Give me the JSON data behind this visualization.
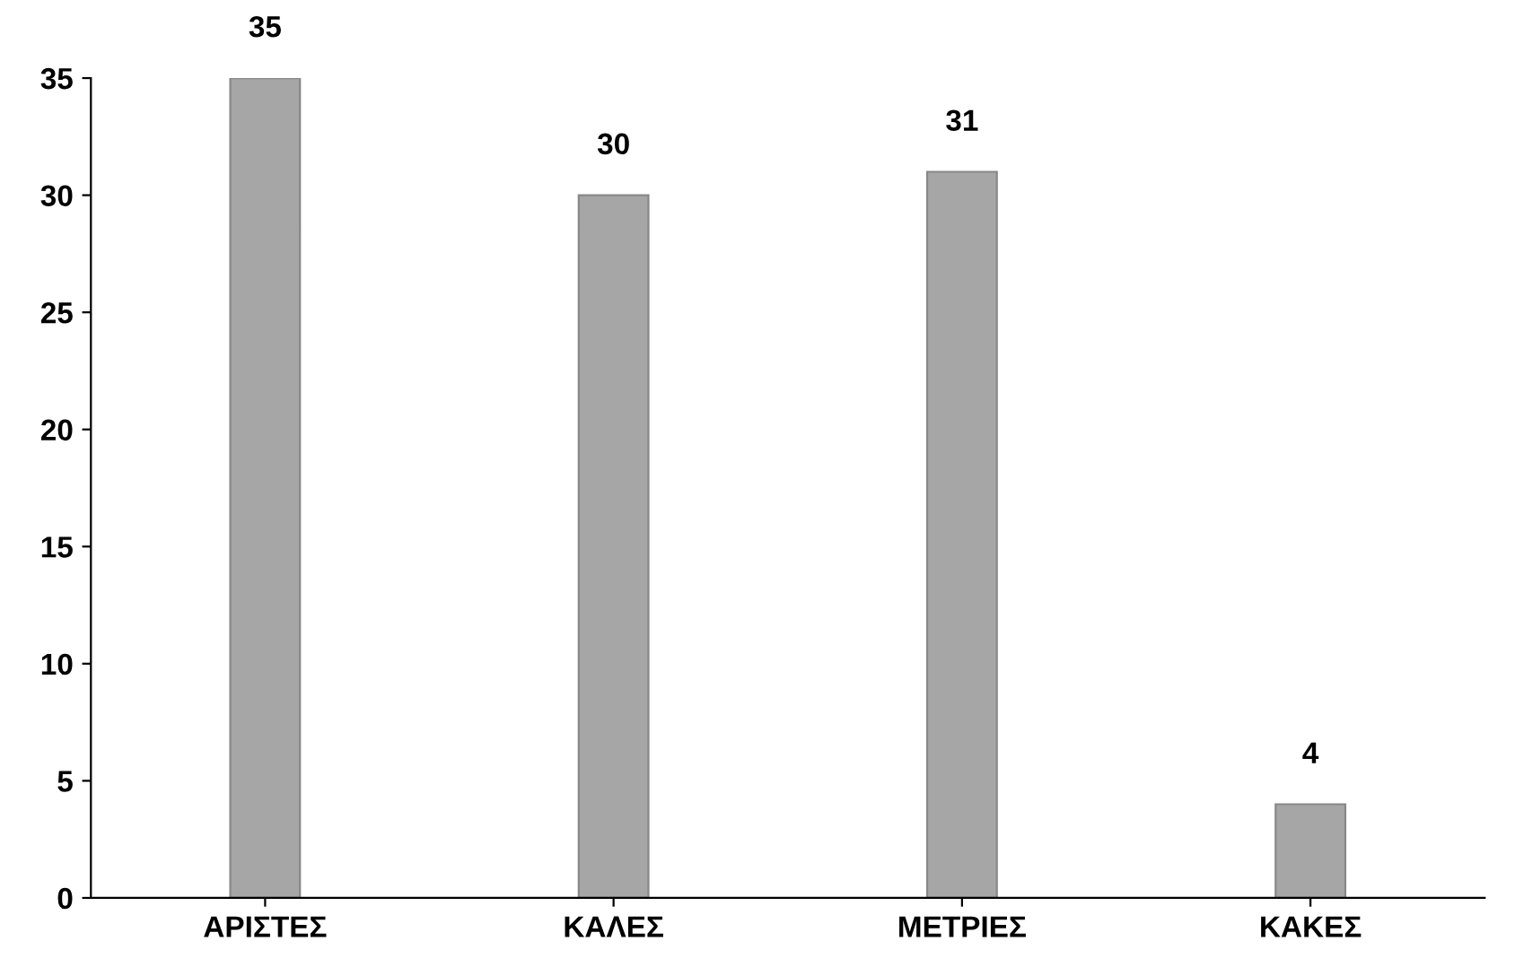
{
  "chart_data": {
    "type": "bar",
    "categories": [
      "ΑΡΙΣΤΕΣ",
      "ΚΑΛΕΣ",
      "ΜΕΤΡΙΕΣ",
      "ΚΑΚΕΣ"
    ],
    "values": [
      35,
      30,
      31,
      4
    ],
    "color": "#a6a6a6",
    "ylim": [
      0,
      35
    ],
    "yticks": [
      0,
      5,
      10,
      15,
      20,
      25,
      30,
      35
    ],
    "grid": false,
    "data_labels": true
  }
}
